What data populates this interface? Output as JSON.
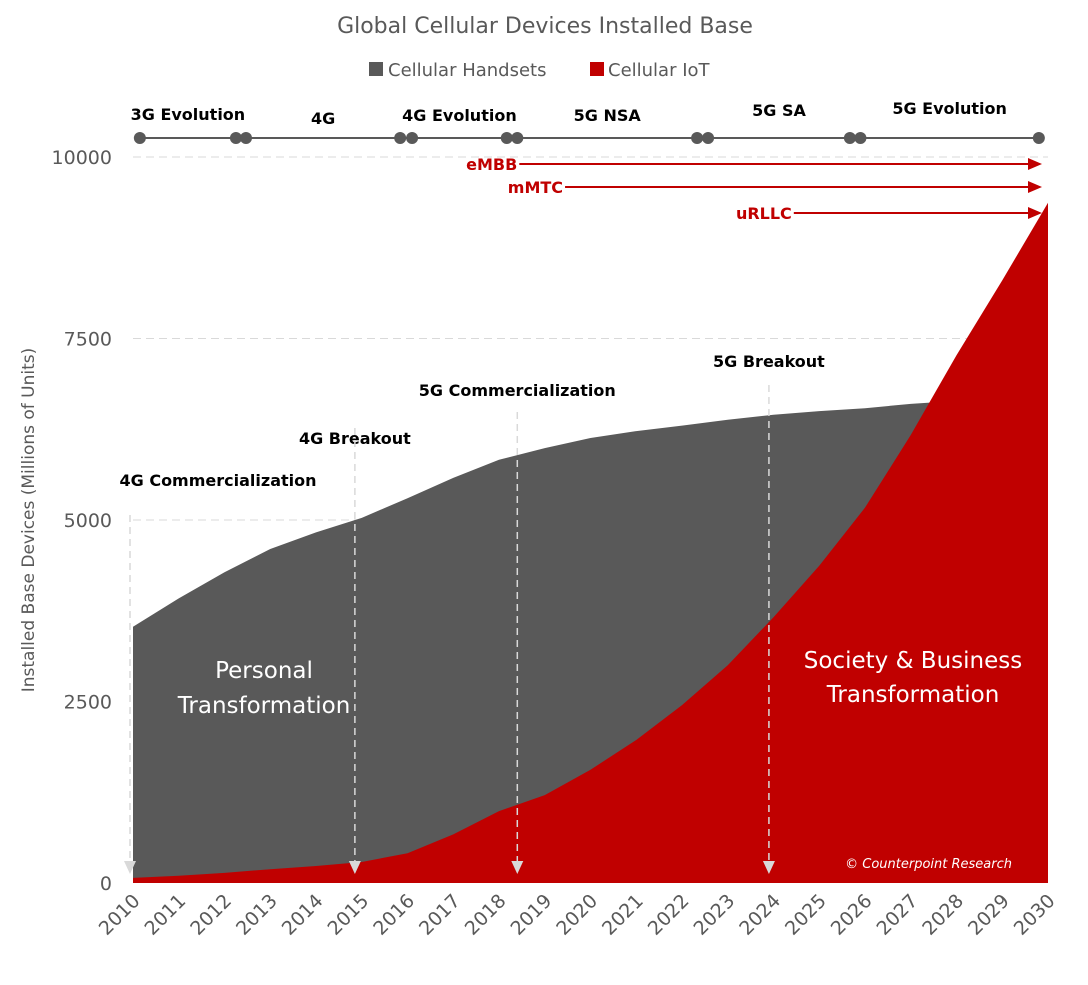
{
  "chart_data": {
    "type": "area",
    "title": "Global Cellular Devices Installed Base",
    "ylabel": "Installed Base Devices (Millions of Units)",
    "xlabel": "",
    "ylim": [
      0,
      10000
    ],
    "yticks": [
      0,
      2500,
      5000,
      7500,
      10000
    ],
    "grid": true,
    "legend_position": "top",
    "categories": [
      2010,
      2011,
      2012,
      2013,
      2014,
      2015,
      2016,
      2017,
      2018,
      2019,
      2020,
      2021,
      2022,
      2023,
      2024,
      2025,
      2026,
      2027,
      2028,
      2029,
      2030
    ],
    "series": [
      {
        "name": "Cellular Handsets",
        "color": "#595959",
        "values": [
          3530,
          3920,
          4280,
          4600,
          4830,
          5030,
          5300,
          5580,
          5830,
          5990,
          6130,
          6225,
          6300,
          6380,
          6450,
          6500,
          6540,
          6600,
          6640,
          6670,
          6710
        ]
      },
      {
        "name": "Cellular IoT",
        "color": "#c00000",
        "values": [
          70,
          100,
          140,
          190,
          235,
          290,
          410,
          670,
          990,
          1210,
          1560,
          1970,
          2450,
          3000,
          3660,
          4370,
          5170,
          6170,
          7270,
          8300,
          9370
        ]
      }
    ],
    "phases": [
      {
        "label": "3G Evolution",
        "start": 2010.15,
        "end": 2012.25
      },
      {
        "label": "4G",
        "start": 2012.47,
        "end": 2015.84
      },
      {
        "label": "4G Evolution",
        "start": 2016.1,
        "end": 2018.17
      },
      {
        "label": "5G NSA",
        "start": 2018.4,
        "end": 2022.33
      },
      {
        "label": "5G SA",
        "start": 2022.57,
        "end": 2025.67
      },
      {
        "label": "5G Evolution",
        "start": 2025.9,
        "end": 2029.8
      }
    ],
    "services": [
      {
        "label": "eMBB",
        "start": 2018.4
      },
      {
        "label": "mMTC",
        "start": 2019.4
      },
      {
        "label": "uRLLC",
        "start": 2024.4
      }
    ],
    "milestones": [
      {
        "label": "4G Commercialization",
        "year": 2010
      },
      {
        "label": "4G Breakout",
        "year": 2014.85
      },
      {
        "label": "5G Commercialization",
        "year": 2018.4
      },
      {
        "label": "5G Breakout",
        "year": 2023.9
      }
    ],
    "region_labels": {
      "personal": [
        "Personal",
        "Transformation"
      ],
      "society": [
        "Society & Business",
        "Transformation"
      ]
    },
    "copyright": "© Counterpoint Research"
  }
}
